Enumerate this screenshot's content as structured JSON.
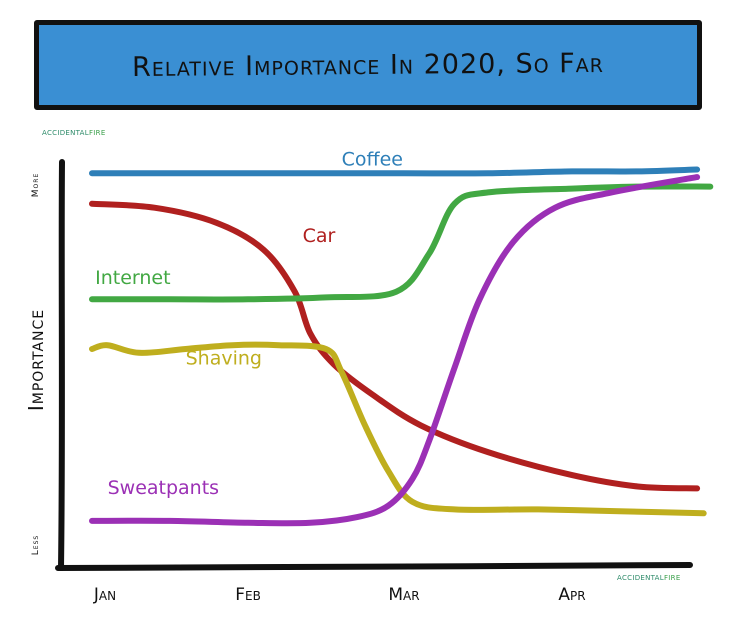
{
  "chart_data": {
    "type": "line",
    "title": "Relative Importance In 2020, So Far",
    "xlabel": "",
    "ylabel": "Importance",
    "y_axis_ends": {
      "top": "More",
      "bottom": "Less"
    },
    "categories": [
      "Jan",
      "Feb",
      "Mar",
      "Apr"
    ],
    "xlim": [
      0,
      4.2
    ],
    "ylim": [
      0,
      100
    ],
    "grid": false,
    "legend": "inline labels",
    "credits": {
      "name_part1": "ACCIDENTAL",
      "name_part2": "FIRE"
    },
    "series": [
      {
        "name": "Coffee",
        "color": "#2e7fb8",
        "label_at": [
          1.6,
          98
        ],
        "points": [
          [
            0,
            96
          ],
          [
            0.5,
            96
          ],
          [
            1,
            96
          ],
          [
            1.5,
            96
          ],
          [
            2,
            96
          ],
          [
            2.5,
            96
          ],
          [
            3,
            96.5
          ],
          [
            3.5,
            96.5
          ],
          [
            3.95,
            97
          ]
        ]
      },
      {
        "name": "Car",
        "color": "#b0201f",
        "label_at": [
          1.35,
          78
        ],
        "points": [
          [
            0,
            88
          ],
          [
            0.4,
            87
          ],
          [
            0.8,
            83
          ],
          [
            1.1,
            76
          ],
          [
            1.3,
            65
          ],
          [
            1.4,
            54
          ],
          [
            1.55,
            46
          ],
          [
            1.8,
            38
          ],
          [
            2.1,
            30
          ],
          [
            2.5,
            23
          ],
          [
            3,
            17
          ],
          [
            3.5,
            14
          ],
          [
            3.95,
            13.5
          ]
        ]
      },
      {
        "name": "Internet",
        "color": "#42a843",
        "label_at": [
          0.02,
          67
        ],
        "points": [
          [
            0,
            63
          ],
          [
            0.5,
            63
          ],
          [
            1,
            63
          ],
          [
            1.5,
            63.5
          ],
          [
            1.95,
            65
          ],
          [
            2.15,
            75
          ],
          [
            2.3,
            88
          ],
          [
            2.5,
            91
          ],
          [
            3,
            92
          ],
          [
            3.5,
            92.5
          ],
          [
            4.05,
            92.5
          ]
        ]
      },
      {
        "name": "Shaving",
        "color": "#bfae1e",
        "label_at": [
          0.6,
          46
        ],
        "points": [
          [
            0,
            50
          ],
          [
            0.1,
            51
          ],
          [
            0.3,
            49
          ],
          [
            0.6,
            50
          ],
          [
            0.9,
            51
          ],
          [
            1.2,
            51
          ],
          [
            1.5,
            50
          ],
          [
            1.6,
            44
          ],
          [
            1.75,
            30
          ],
          [
            1.9,
            18
          ],
          [
            2.05,
            10
          ],
          [
            2.3,
            8
          ],
          [
            2.8,
            8
          ],
          [
            3.4,
            7.5
          ],
          [
            4,
            7
          ]
        ]
      },
      {
        "name": "Sweatpants",
        "color": "#9b30b5",
        "label_at": [
          0.1,
          12
        ],
        "points": [
          [
            0,
            5
          ],
          [
            0.5,
            5
          ],
          [
            1,
            4.5
          ],
          [
            1.4,
            4.5
          ],
          [
            1.7,
            6
          ],
          [
            1.9,
            9
          ],
          [
            2.05,
            16
          ],
          [
            2.15,
            26
          ],
          [
            2.3,
            45
          ],
          [
            2.45,
            63
          ],
          [
            2.65,
            78
          ],
          [
            2.9,
            87
          ],
          [
            3.3,
            91
          ],
          [
            3.95,
            95
          ]
        ]
      }
    ]
  }
}
